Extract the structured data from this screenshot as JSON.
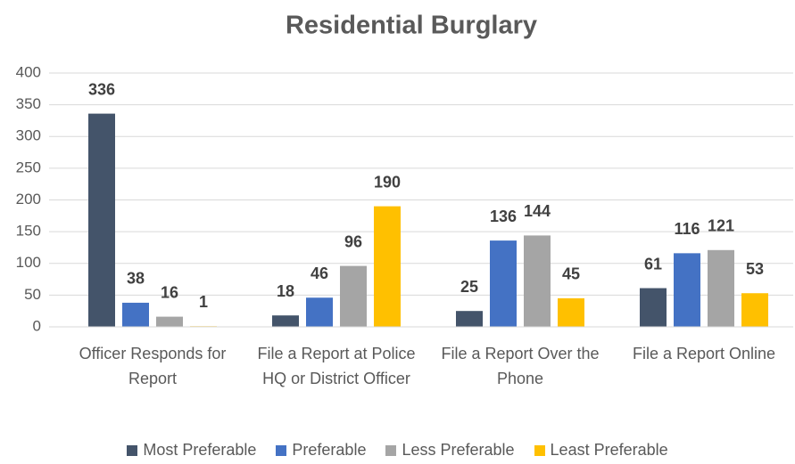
{
  "chart_data": {
    "type": "bar",
    "title": "Residential Burglary",
    "categories": [
      "Officer Responds for Report",
      "File a Report at Police HQ or District Officer",
      "File a Report Over the Phone",
      "File a Report Online"
    ],
    "series": [
      {
        "name": "Most Preferable",
        "color": "#44546a",
        "values": [
          336,
          18,
          25,
          61
        ]
      },
      {
        "name": "Preferable",
        "color": "#4472c4",
        "values": [
          38,
          46,
          136,
          116
        ]
      },
      {
        "name": "Less Preferable",
        "color": "#a5a5a5",
        "values": [
          16,
          96,
          144,
          121
        ]
      },
      {
        "name": "Least Preferable",
        "color": "#ffc000",
        "values": [
          1,
          190,
          45,
          53
        ]
      }
    ],
    "ylim": [
      0,
      400
    ],
    "yticks": [
      0,
      50,
      100,
      150,
      200,
      250,
      300,
      350,
      400
    ],
    "grid": true,
    "legend": "bottom"
  }
}
